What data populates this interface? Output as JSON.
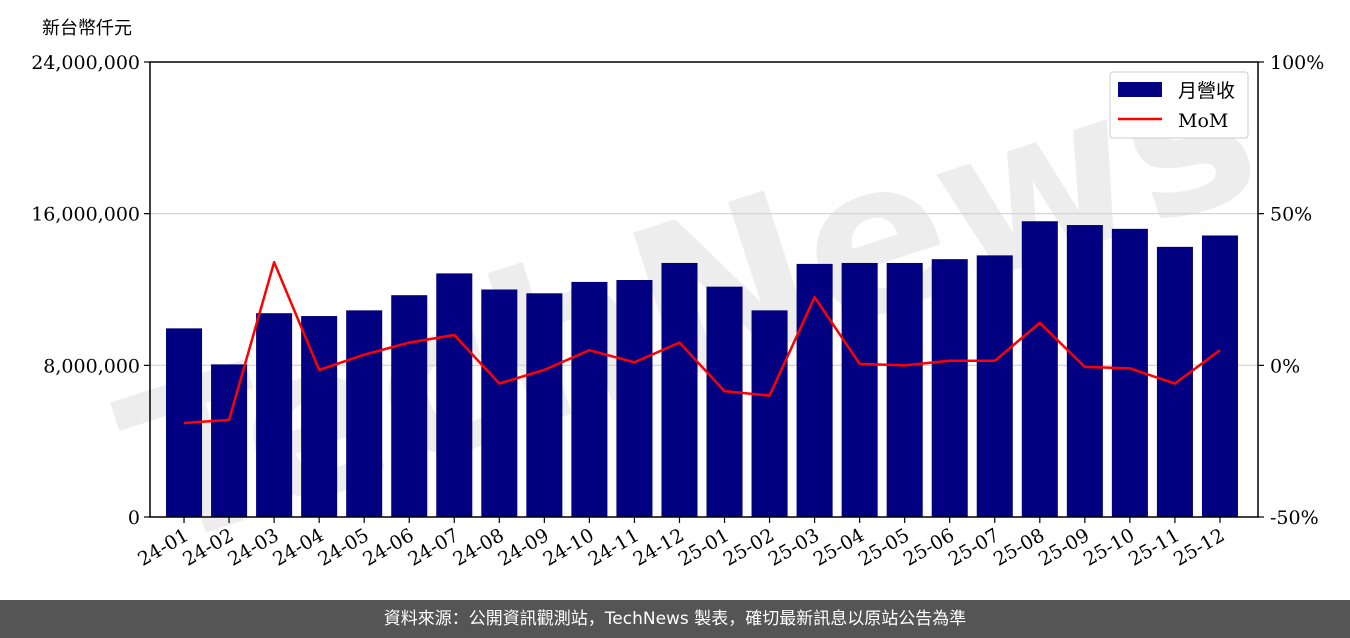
{
  "chart_data": {
    "type": "bar",
    "unit_label": "新台幣仟元",
    "categories": [
      "24-01",
      "24-02",
      "24-03",
      "24-04",
      "24-05",
      "24-06",
      "24-07",
      "24-08",
      "24-09",
      "24-10",
      "24-11",
      "24-12",
      "25-01",
      "25-02",
      "25-03",
      "25-04",
      "25-05",
      "25-06",
      "25-07",
      "25-08",
      "25-09",
      "25-10",
      "25-11",
      "25-12"
    ],
    "series": [
      {
        "name": "月營收",
        "axis": "left",
        "color": "#000080",
        "values": [
          9950000,
          8050000,
          10750000,
          10600000,
          10900000,
          11700000,
          12850000,
          12000000,
          11800000,
          12400000,
          12500000,
          13400000,
          12150000,
          10900000,
          13350000,
          13400000,
          13400000,
          13600000,
          13800000,
          15600000,
          15400000,
          15200000,
          14250000,
          14850000
        ]
      },
      {
        "name": "MoM",
        "axis": "right",
        "color": "#ff0000",
        "values": [
          -19,
          -18,
          34,
          -1.5,
          3.5,
          7.5,
          10,
          -6,
          -1.5,
          5,
          1,
          7.5,
          -8.5,
          -10,
          22.5,
          0.5,
          0,
          1.5,
          1.5,
          14,
          -0.5,
          -1,
          -6,
          5
        ]
      }
    ],
    "y_left": {
      "min": 0,
      "max": 24000000,
      "ticks": [
        0,
        8000000,
        16000000,
        24000000
      ],
      "tick_labels": [
        "0",
        "8,000,000",
        "16,000,000",
        "24,000,000"
      ]
    },
    "y_right": {
      "min": -50,
      "max": 100,
      "ticks": [
        -50,
        0,
        50,
        100
      ],
      "tick_labels": [
        "-50%",
        "0%",
        "50%",
        "100%"
      ]
    },
    "grid": "horizontal",
    "legend_position": "top-right"
  },
  "watermark_text": "TechNews",
  "footer_text": "資料來源：公開資訊觀測站，TechNews 製表，確切最新訊息以原站公告為準"
}
